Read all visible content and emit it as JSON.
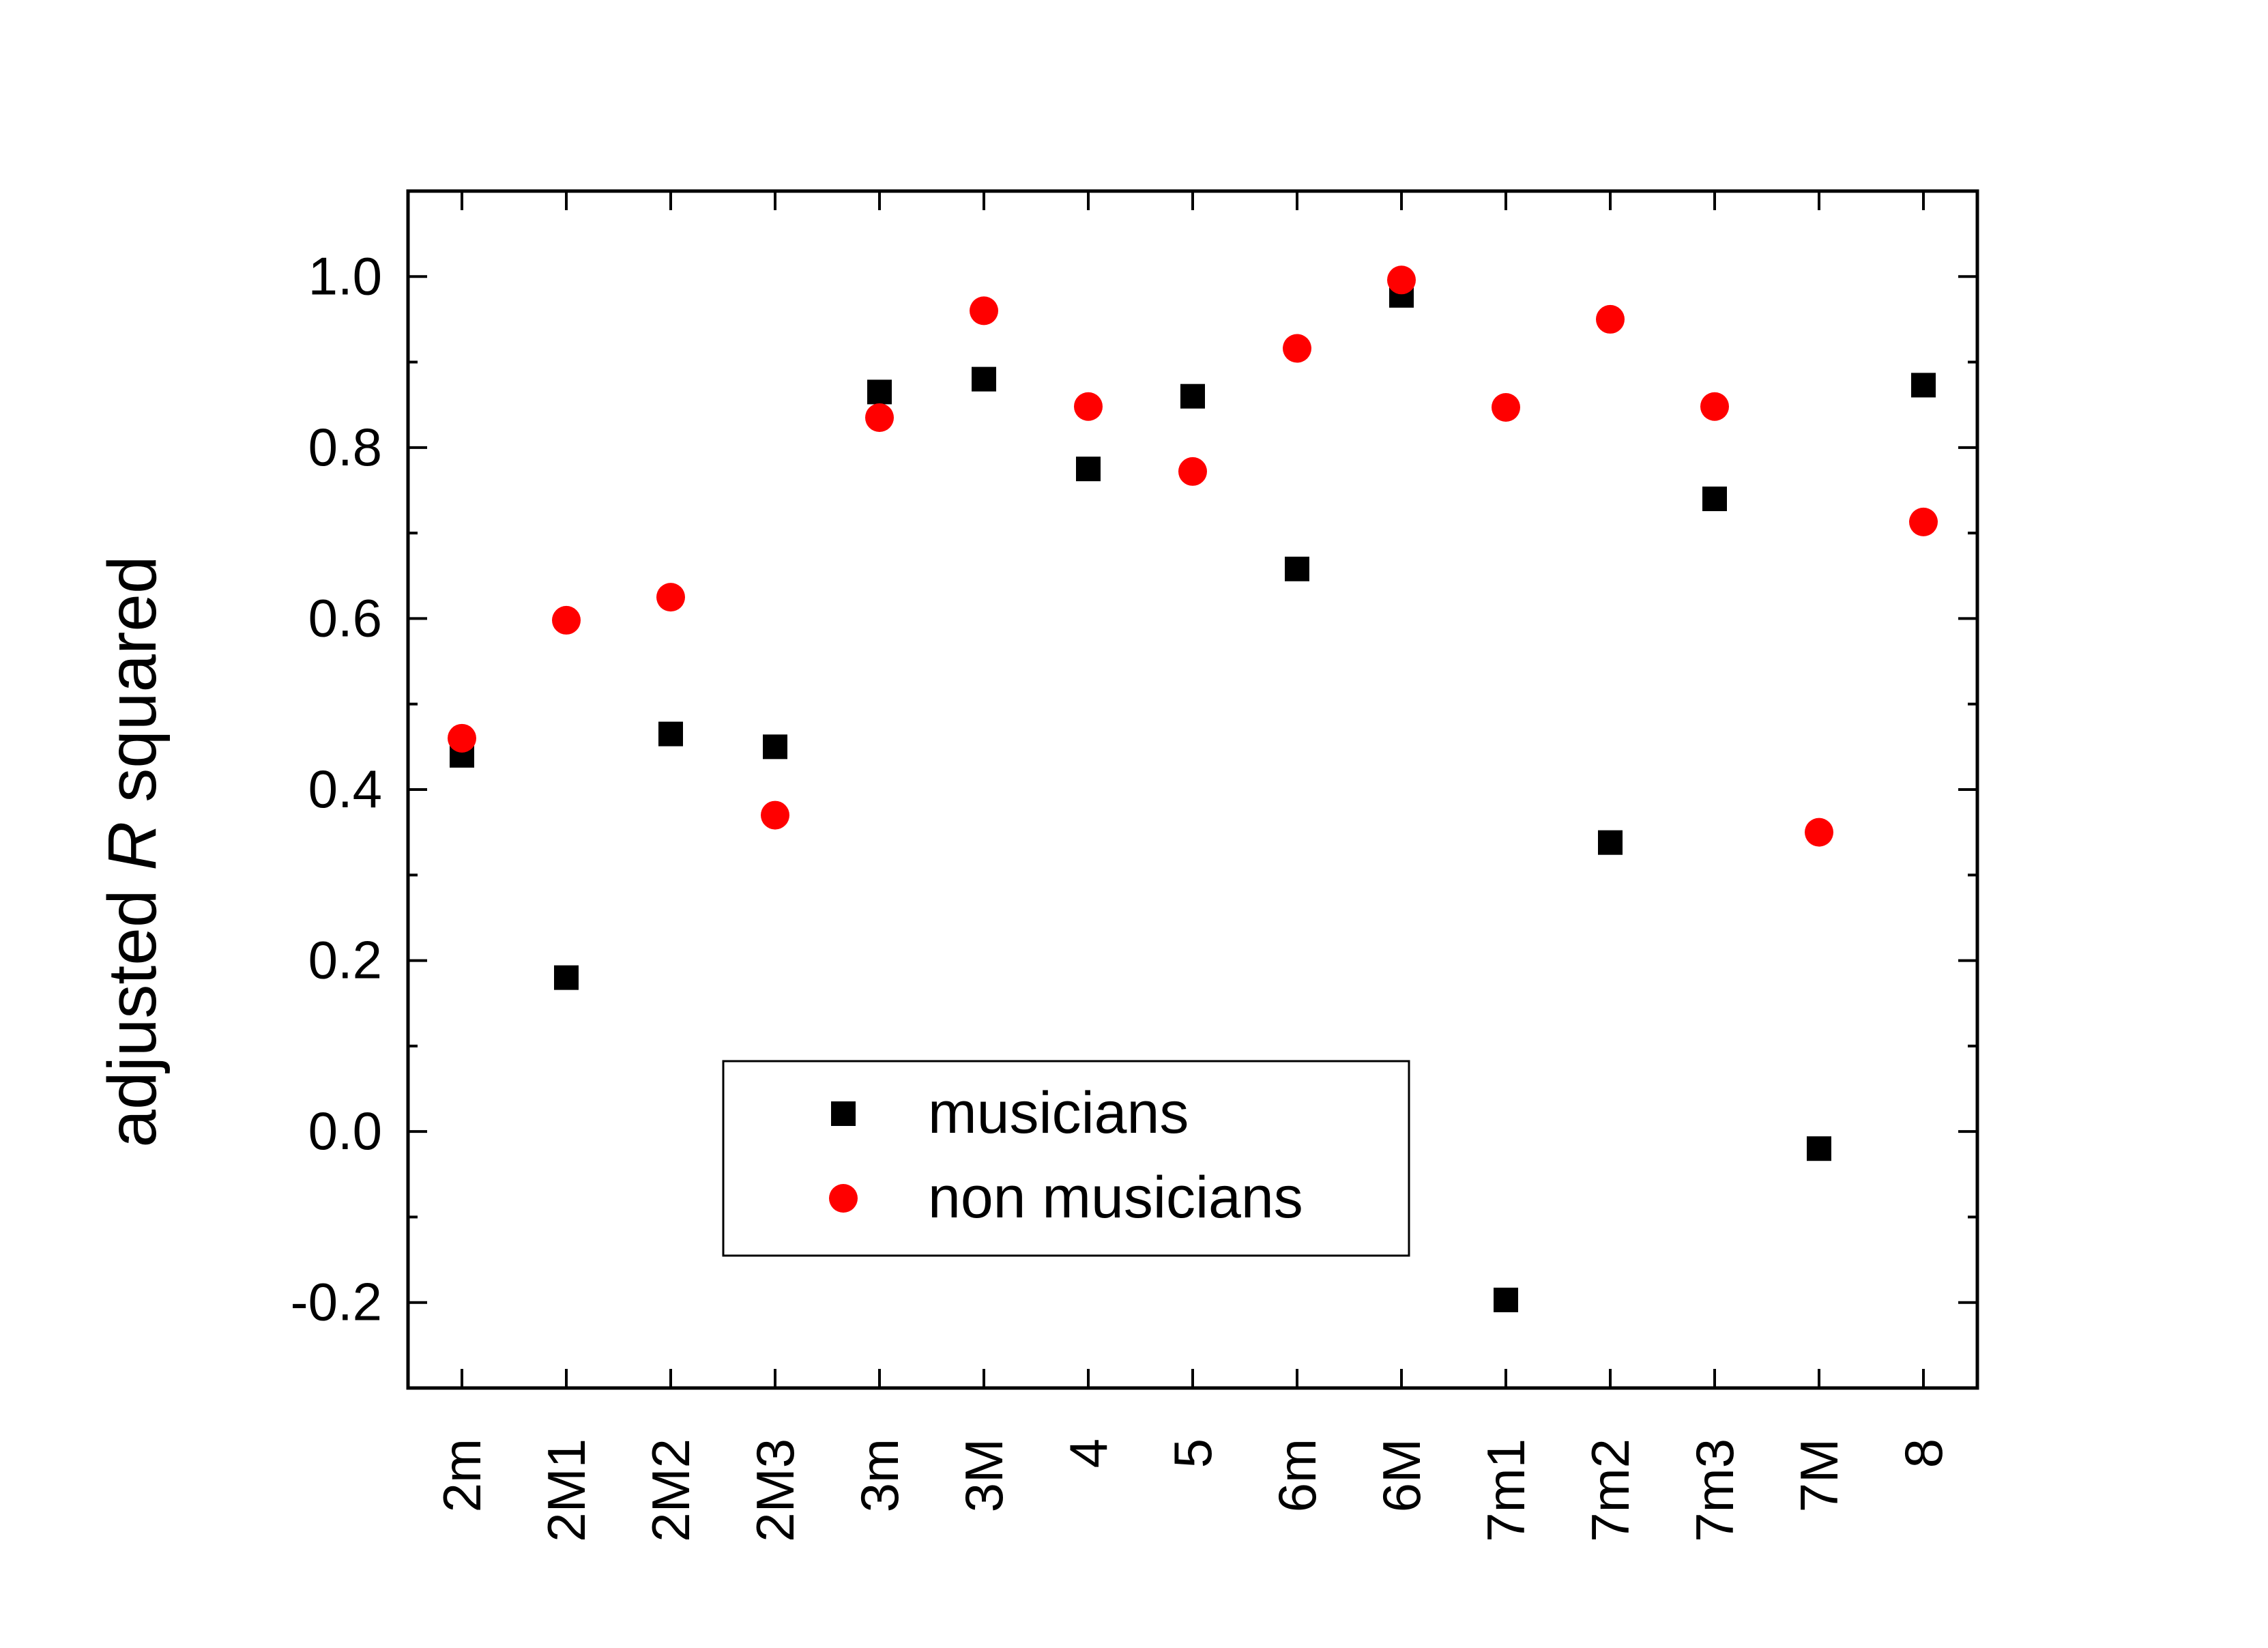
{
  "chart_data": {
    "type": "scatter",
    "title": "",
    "xlabel": "",
    "ylabel_prefix": "adjusted ",
    "ylabel_italic": "R",
    "ylabel_suffix": " squared",
    "ylim": [
      -0.3,
      1.1
    ],
    "y_ticks": [
      -0.2,
      0.0,
      0.2,
      0.4,
      0.6,
      0.8,
      1.0
    ],
    "y_tick_labels": [
      "-0.2",
      "0.0",
      "0.2",
      "0.4",
      "0.6",
      "0.8",
      "1.0"
    ],
    "categories": [
      "2m",
      "2M1",
      "2M2",
      "2M3",
      "3m",
      "3M",
      "4",
      "5",
      "6m",
      "6M",
      "7m1",
      "7m2",
      "7m3",
      "7M",
      "8"
    ],
    "grid": false,
    "legend_position": "bottom-center",
    "series": [
      {
        "name": "musicians",
        "marker": "square",
        "color": "#000000",
        "values": [
          0.44,
          0.18,
          0.465,
          0.45,
          0.865,
          0.88,
          0.775,
          0.86,
          0.658,
          0.978,
          -0.197,
          0.338,
          0.74,
          -0.02,
          0.873
        ]
      },
      {
        "name": "non musicians",
        "marker": "circle",
        "color": "#ff0000",
        "values": [
          0.46,
          0.598,
          0.625,
          0.37,
          0.835,
          0.96,
          0.848,
          0.772,
          0.916,
          0.996,
          0.847,
          0.95,
          0.848,
          0.35,
          0.713
        ]
      }
    ]
  }
}
